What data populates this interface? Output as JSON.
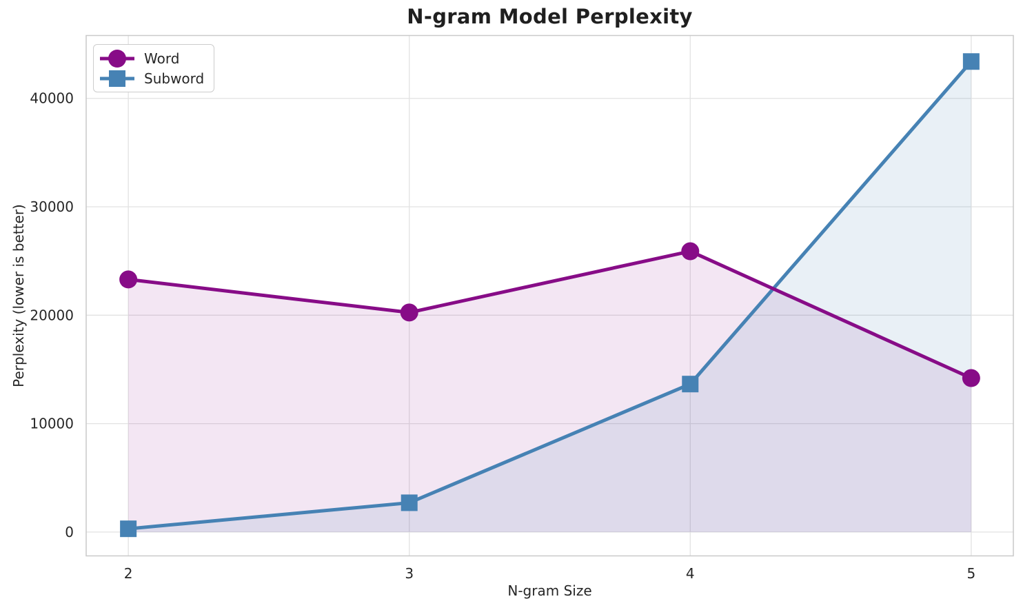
{
  "chart_data": {
    "type": "line",
    "title": "N-gram Model Perplexity",
    "xlabel": "N-gram Size",
    "ylabel": "Perplexity (lower is better)",
    "x": [
      2,
      3,
      4,
      5
    ],
    "series": [
      {
        "name": "Word",
        "values": [
          23300,
          20250,
          25900,
          14200
        ],
        "color": "#870C87",
        "marker": "circle",
        "fill_opacity": 0.1
      },
      {
        "name": "Subword",
        "values": [
          300,
          2700,
          13650,
          43400
        ],
        "color": "#4682B4",
        "marker": "square",
        "fill_opacity": 0.12
      }
    ],
    "xticks": [
      2,
      3,
      4,
      5
    ],
    "xtick_labels": [
      "2",
      "3",
      "4",
      "5"
    ],
    "yticks": [
      0,
      10000,
      20000,
      30000,
      40000
    ],
    "ytick_labels": [
      "0",
      "10000",
      "20000",
      "30000",
      "40000"
    ],
    "xlim": [
      1.85,
      5.15
    ],
    "ylim": [
      -2200,
      45800
    ],
    "grid": true,
    "area_fill": true,
    "area_baseline": 0,
    "legend_position": "upper left",
    "colors": {
      "grid": "#e2e2e2",
      "spine": "#c9c9c9",
      "text": "#262626",
      "title": "#1f1f1f",
      "background": "#ffffff"
    }
  }
}
